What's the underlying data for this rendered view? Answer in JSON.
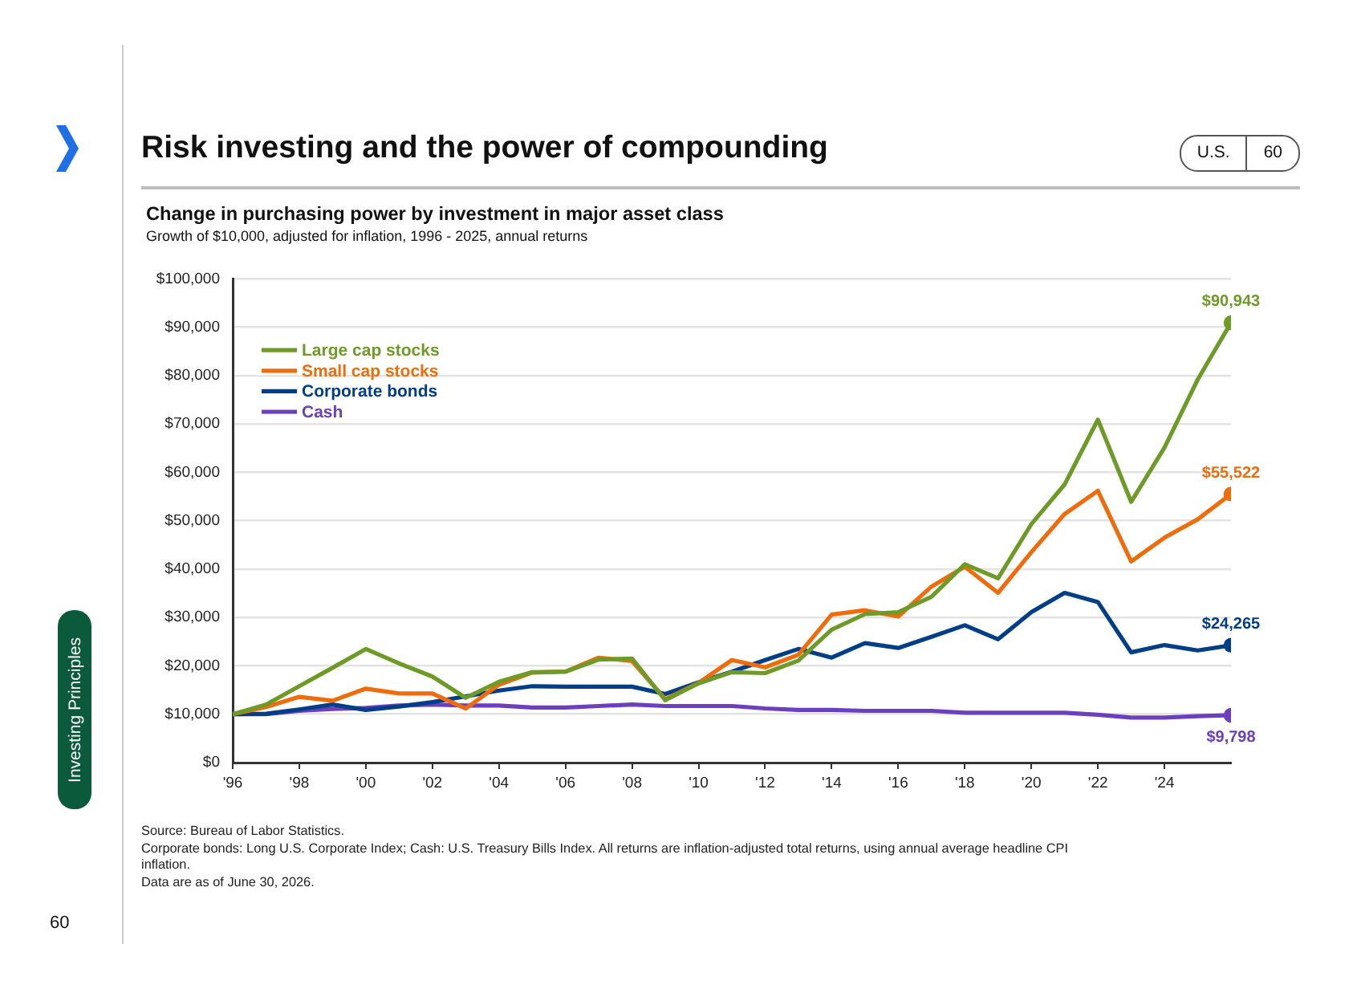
{
  "chart_data": {
    "type": "line",
    "title": "Risk investing and the power of compounding",
    "subtitle": "Change in purchasing power by investment in major asset class",
    "x": [
      1996,
      1997,
      1998,
      1999,
      2000,
      2001,
      2002,
      2003,
      2004,
      2005,
      2006,
      2007,
      2008,
      2009,
      2010,
      2011,
      2012,
      2013,
      2014,
      2015,
      2016,
      2017,
      2018,
      2019,
      2020,
      2021,
      2022,
      2023,
      2024,
      2025,
      2026
    ],
    "xlim": [
      1996,
      2026
    ],
    "xticks": [
      {
        "value": 1996,
        "label": "'96"
      },
      {
        "value": 1998,
        "label": "'98"
      },
      {
        "value": 2000,
        "label": "'00"
      },
      {
        "value": 2002,
        "label": "'02"
      },
      {
        "value": 2004,
        "label": "'04"
      },
      {
        "value": 2006,
        "label": "'06"
      },
      {
        "value": 2008,
        "label": "'08"
      },
      {
        "value": 2010,
        "label": "'10"
      },
      {
        "value": 2012,
        "label": "'12"
      },
      {
        "value": 2014,
        "label": "'14"
      },
      {
        "value": 2016,
        "label": "'16"
      },
      {
        "value": 2018,
        "label": "'18"
      },
      {
        "value": 2020,
        "label": "'20"
      },
      {
        "value": 2022,
        "label": "'22"
      },
      {
        "value": 2024,
        "label": "'24"
      }
    ],
    "ylim": [
      0,
      100000
    ],
    "yticks": [
      {
        "value": 0,
        "label": "$0"
      },
      {
        "value": 10000,
        "label": "$10,000"
      },
      {
        "value": 20000,
        "label": "$20,000"
      },
      {
        "value": 30000,
        "label": "$30,000"
      },
      {
        "value": 40000,
        "label": "$40,000"
      },
      {
        "value": 50000,
        "label": "$50,000"
      },
      {
        "value": 60000,
        "label": "$60,000"
      },
      {
        "value": 70000,
        "label": "$70,000"
      },
      {
        "value": 80000,
        "label": "$80,000"
      },
      {
        "value": 90000,
        "label": "$90,000"
      },
      {
        "value": 100000,
        "label": "$100,000"
      }
    ],
    "grid": "y",
    "legend": "top left",
    "series": [
      {
        "name": "Large cap stocks",
        "color": "#6e9b28",
        "values": [
          10000,
          12000,
          15800,
          19600,
          23500,
          20500,
          17800,
          13400,
          16700,
          18700,
          18800,
          21300,
          21500,
          12900,
          16400,
          18700,
          18500,
          21100,
          27500,
          30700,
          31100,
          34300,
          41000,
          38100,
          49300,
          57500,
          70900,
          53900,
          65100,
          79200,
          90943
        ],
        "value_labels": [
          null,
          null,
          null,
          null,
          null,
          null,
          null,
          null,
          null,
          null,
          null,
          null,
          null,
          null,
          null,
          null,
          null,
          null,
          null,
          null,
          null,
          null,
          null,
          null,
          null,
          null,
          null,
          null,
          null,
          null,
          "$90,943"
        ]
      },
      {
        "name": "Small cap stocks",
        "color": "#ef6c0c",
        "values": [
          10000,
          11500,
          13600,
          12800,
          15300,
          14300,
          14300,
          11200,
          16100,
          18600,
          18800,
          21700,
          21000,
          13100,
          16500,
          21200,
          19700,
          22300,
          30600,
          31500,
          30200,
          36400,
          40500,
          35100,
          43500,
          51400,
          56200,
          41600,
          46500,
          50300,
          55522
        ],
        "value_labels": [
          null,
          null,
          null,
          null,
          null,
          null,
          null,
          null,
          null,
          null,
          null,
          null,
          null,
          null,
          null,
          null,
          null,
          null,
          null,
          null,
          null,
          null,
          null,
          null,
          null,
          null,
          null,
          null,
          null,
          null,
          "$55,522"
        ]
      },
      {
        "name": "Corporate bonds",
        "color": "#003f87",
        "values": [
          10000,
          10100,
          11000,
          12000,
          10900,
          11600,
          12500,
          13700,
          14900,
          15800,
          15700,
          15700,
          15700,
          14200,
          16600,
          18800,
          21200,
          23500,
          21700,
          24700,
          23700,
          26000,
          28400,
          25500,
          31100,
          35100,
          33200,
          22800,
          24300,
          23200,
          24265
        ],
        "value_labels": [
          null,
          null,
          null,
          null,
          null,
          null,
          null,
          null,
          null,
          null,
          null,
          null,
          null,
          null,
          null,
          null,
          null,
          null,
          null,
          null,
          null,
          null,
          null,
          null,
          null,
          null,
          null,
          null,
          null,
          null,
          "$24,265"
        ]
      },
      {
        "name": "Cash",
        "color": "#6c3fbf",
        "values": [
          10000,
          10000,
          10700,
          11100,
          11300,
          11800,
          12000,
          11800,
          11800,
          11400,
          11400,
          11700,
          12000,
          11700,
          11700,
          11700,
          11200,
          10900,
          10900,
          10700,
          10700,
          10700,
          10300,
          10300,
          10300,
          10300,
          9900,
          9300,
          9300,
          9600,
          9798
        ],
        "value_labels": [
          null,
          null,
          null,
          null,
          null,
          null,
          null,
          null,
          null,
          null,
          null,
          null,
          null,
          null,
          null,
          null,
          null,
          null,
          null,
          null,
          null,
          null,
          null,
          null,
          null,
          null,
          null,
          null,
          null,
          null,
          "$9,798"
        ]
      }
    ],
    "annotations": [
      "Growth of $10,000, adjusted for inflation, 1996 - 2025, annual returns",
      "Source: Bureau of Labor Statistics.",
      "Corporate bonds: Long U.S. Corporate Index; Cash: U.S. Treasury Bills Index. All returns are inflation-adjusted total returns, using annual average headline CPI inflation.",
      "Data are as of June 30, 2026.",
      "Investing Principles",
      "60",
      "U.S.",
      "60"
    ]
  }
}
